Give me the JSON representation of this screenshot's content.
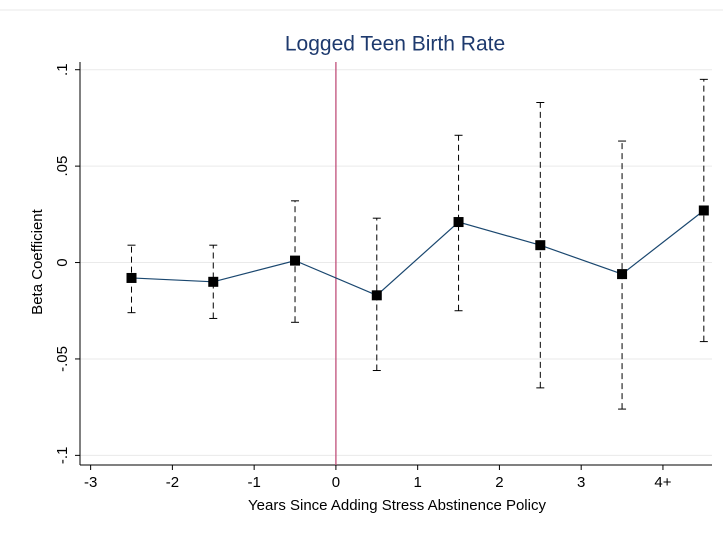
{
  "chart_data": {
    "type": "line",
    "title": "Logged Teen Birth Rate",
    "x_label": "Years Since Adding Stress Abstinence Policy",
    "y_label": "Beta Coefficient",
    "x": [
      -2.5,
      -1.5,
      -0.5,
      0.5,
      1.5,
      2.5,
      3.5,
      4.5
    ],
    "series": [
      {
        "color": "#1a476f",
        "marker_color": "#000000",
        "values": [
          -0.008,
          -0.01,
          0.001,
          -0.017,
          0.021,
          0.009,
          -0.006,
          0.027
        ],
        "ci_low": [
          -0.026,
          -0.029,
          -0.031,
          -0.056,
          -0.025,
          -0.065,
          -0.076,
          -0.041
        ],
        "ci_high": [
          0.009,
          0.009,
          0.032,
          0.023,
          0.066,
          0.083,
          0.063,
          0.095
        ]
      }
    ],
    "xlim": [
      -3.13,
      4.6
    ],
    "ylim": [
      -0.105,
      0.104
    ],
    "xticks": [
      -3,
      -2,
      -1,
      0,
      1,
      2,
      3,
      {
        "value": 4,
        "label": "4+"
      }
    ],
    "yticks": [
      {
        "value": -0.1,
        "label": "-.1"
      },
      {
        "value": -0.05,
        "label": "-.05"
      },
      0,
      {
        "value": 0.05,
        "label": ".05"
      },
      {
        "value": 0.1,
        "label": ".1"
      }
    ],
    "grid": true,
    "reference_line": {
      "x": 0,
      "color": "#c0507a"
    }
  }
}
